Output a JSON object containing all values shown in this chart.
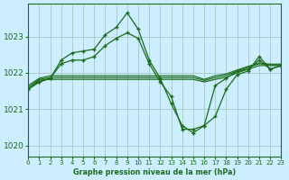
{
  "title": "Graphe pression niveau de la mer (hPa)",
  "bg_color": "#cceeff",
  "grid_color": "#aacccc",
  "line_color": "#1a6b1a",
  "xlim": [
    0,
    23
  ],
  "ylim": [
    1019.7,
    1023.9
  ],
  "yticks": [
    1020,
    1021,
    1022,
    1023
  ],
  "xticks": [
    0,
    1,
    2,
    3,
    4,
    5,
    6,
    7,
    8,
    9,
    10,
    11,
    12,
    13,
    14,
    15,
    16,
    17,
    18,
    19,
    20,
    21,
    22,
    23
  ],
  "series": [
    {
      "x": [
        0,
        1,
        2,
        3,
        4,
        5,
        6,
        7,
        8,
        9,
        10,
        11,
        12,
        13,
        14,
        15,
        16,
        17,
        18,
        19,
        20,
        21,
        22,
        23
      ],
      "y": [
        1021.55,
        1021.75,
        1021.85,
        1022.35,
        1022.55,
        1022.6,
        1022.65,
        1023.05,
        1023.25,
        1023.65,
        1023.2,
        1022.35,
        1021.85,
        1021.15,
        1020.55,
        1020.35,
        1020.55,
        1020.8,
        1021.55,
        1021.95,
        1022.05,
        1022.45,
        1022.1,
        1022.2
      ],
      "marker": true
    },
    {
      "x": [
        0,
        1,
        2,
        3,
        4,
        5,
        6,
        7,
        8,
        9,
        10,
        11,
        12,
        13,
        14,
        15,
        16,
        17,
        18,
        19,
        20,
        21,
        22,
        23
      ],
      "y": [
        1021.55,
        1021.75,
        1021.85,
        1022.25,
        1022.35,
        1022.35,
        1022.45,
        1022.75,
        1022.95,
        1023.1,
        1022.95,
        1022.25,
        1021.75,
        1021.35,
        1020.45,
        1020.45,
        1020.55,
        1021.65,
        1021.85,
        1022.05,
        1022.1,
        1022.35,
        1022.1,
        1022.2
      ],
      "marker": true
    },
    {
      "x": [
        0,
        1,
        2,
        3,
        4,
        5,
        6,
        7,
        8,
        9,
        10,
        11,
        12,
        13,
        14,
        15,
        16,
        17,
        18,
        19,
        20,
        21,
        22,
        23
      ],
      "y": [
        1021.55,
        1021.8,
        1021.82,
        1021.82,
        1021.82,
        1021.82,
        1021.82,
        1021.82,
        1021.82,
        1021.82,
        1021.82,
        1021.82,
        1021.82,
        1021.82,
        1021.82,
        1021.82,
        1021.75,
        1021.82,
        1021.88,
        1022.0,
        1022.1,
        1022.2,
        1022.2,
        1022.2
      ],
      "marker": false
    },
    {
      "x": [
        0,
        1,
        2,
        3,
        4,
        5,
        6,
        7,
        8,
        9,
        10,
        11,
        12,
        13,
        14,
        15,
        16,
        17,
        18,
        19,
        20,
        21,
        22,
        23
      ],
      "y": [
        1021.6,
        1021.82,
        1021.87,
        1021.87,
        1021.87,
        1021.87,
        1021.87,
        1021.87,
        1021.87,
        1021.87,
        1021.87,
        1021.87,
        1021.87,
        1021.87,
        1021.87,
        1021.87,
        1021.79,
        1021.87,
        1021.93,
        1022.05,
        1022.15,
        1022.25,
        1022.22,
        1022.22
      ],
      "marker": false
    },
    {
      "x": [
        0,
        1,
        2,
        3,
        4,
        5,
        6,
        7,
        8,
        9,
        10,
        11,
        12,
        13,
        14,
        15,
        16,
        17,
        18,
        19,
        20,
        21,
        22,
        23
      ],
      "y": [
        1021.65,
        1021.85,
        1021.92,
        1021.92,
        1021.92,
        1021.92,
        1021.92,
        1021.92,
        1021.92,
        1021.92,
        1021.92,
        1021.92,
        1021.92,
        1021.92,
        1021.92,
        1021.92,
        1021.82,
        1021.92,
        1021.97,
        1022.08,
        1022.18,
        1022.27,
        1022.24,
        1022.24
      ],
      "marker": false
    }
  ]
}
